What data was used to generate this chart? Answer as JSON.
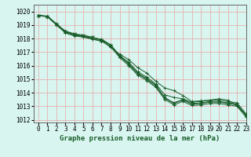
{
  "title": "",
  "xlabel": "Graphe pression niveau de la mer (hPa)",
  "ylabel": "",
  "bg_color": "#d8f5f0",
  "grid_color": "#e8b0b0",
  "line_color": "#1a5c2a",
  "axis_color": "#888888",
  "xlim": [
    -0.5,
    23
  ],
  "ylim": [
    1011.8,
    1020.5
  ],
  "yticks": [
    1012,
    1013,
    1014,
    1015,
    1016,
    1017,
    1018,
    1019,
    1020
  ],
  "xticks": [
    0,
    1,
    2,
    3,
    4,
    5,
    6,
    7,
    8,
    9,
    10,
    11,
    12,
    13,
    14,
    15,
    16,
    17,
    18,
    19,
    20,
    21,
    22,
    23
  ],
  "tick_fontsize": 5.5,
  "xlabel_fontsize": 6.5,
  "series": [
    [
      1019.7,
      1019.65,
      1019.05,
      1018.45,
      1018.25,
      1018.15,
      1017.95,
      1017.85,
      1017.35,
      1016.85,
      1016.45,
      1015.85,
      1015.45,
      1014.85,
      1014.35,
      1014.15,
      1013.8,
      1013.35,
      1013.4,
      1013.45,
      1013.55,
      1013.45,
      1013.05,
      1012.35
    ],
    [
      1019.7,
      1019.65,
      1019.05,
      1018.55,
      1018.25,
      1018.15,
      1018.05,
      1017.95,
      1017.55,
      1016.75,
      1016.25,
      1015.55,
      1015.15,
      1014.65,
      1013.85,
      1013.65,
      1013.55,
      1013.3,
      1013.35,
      1013.45,
      1013.45,
      1013.35,
      1013.25,
      1012.45
    ],
    [
      1019.7,
      1019.65,
      1019.05,
      1018.55,
      1018.35,
      1018.25,
      1018.1,
      1017.9,
      1017.5,
      1016.7,
      1016.15,
      1015.45,
      1015.05,
      1014.55,
      1013.65,
      1013.25,
      1013.5,
      1013.2,
      1013.25,
      1013.35,
      1013.35,
      1013.25,
      1013.15,
      1012.35
    ],
    [
      1019.7,
      1019.65,
      1019.1,
      1018.5,
      1018.3,
      1018.2,
      1018.05,
      1017.9,
      1017.5,
      1016.7,
      1016.1,
      1015.4,
      1015.0,
      1014.5,
      1013.6,
      1013.2,
      1013.45,
      1013.15,
      1013.2,
      1013.3,
      1013.3,
      1013.2,
      1013.1,
      1012.3
    ],
    [
      1019.7,
      1019.6,
      1019.0,
      1018.4,
      1018.2,
      1018.1,
      1017.95,
      1017.8,
      1017.4,
      1016.6,
      1016.0,
      1015.3,
      1014.9,
      1014.4,
      1013.5,
      1013.1,
      1013.35,
      1013.05,
      1013.1,
      1013.2,
      1013.2,
      1013.1,
      1013.0,
      1012.2
    ]
  ]
}
